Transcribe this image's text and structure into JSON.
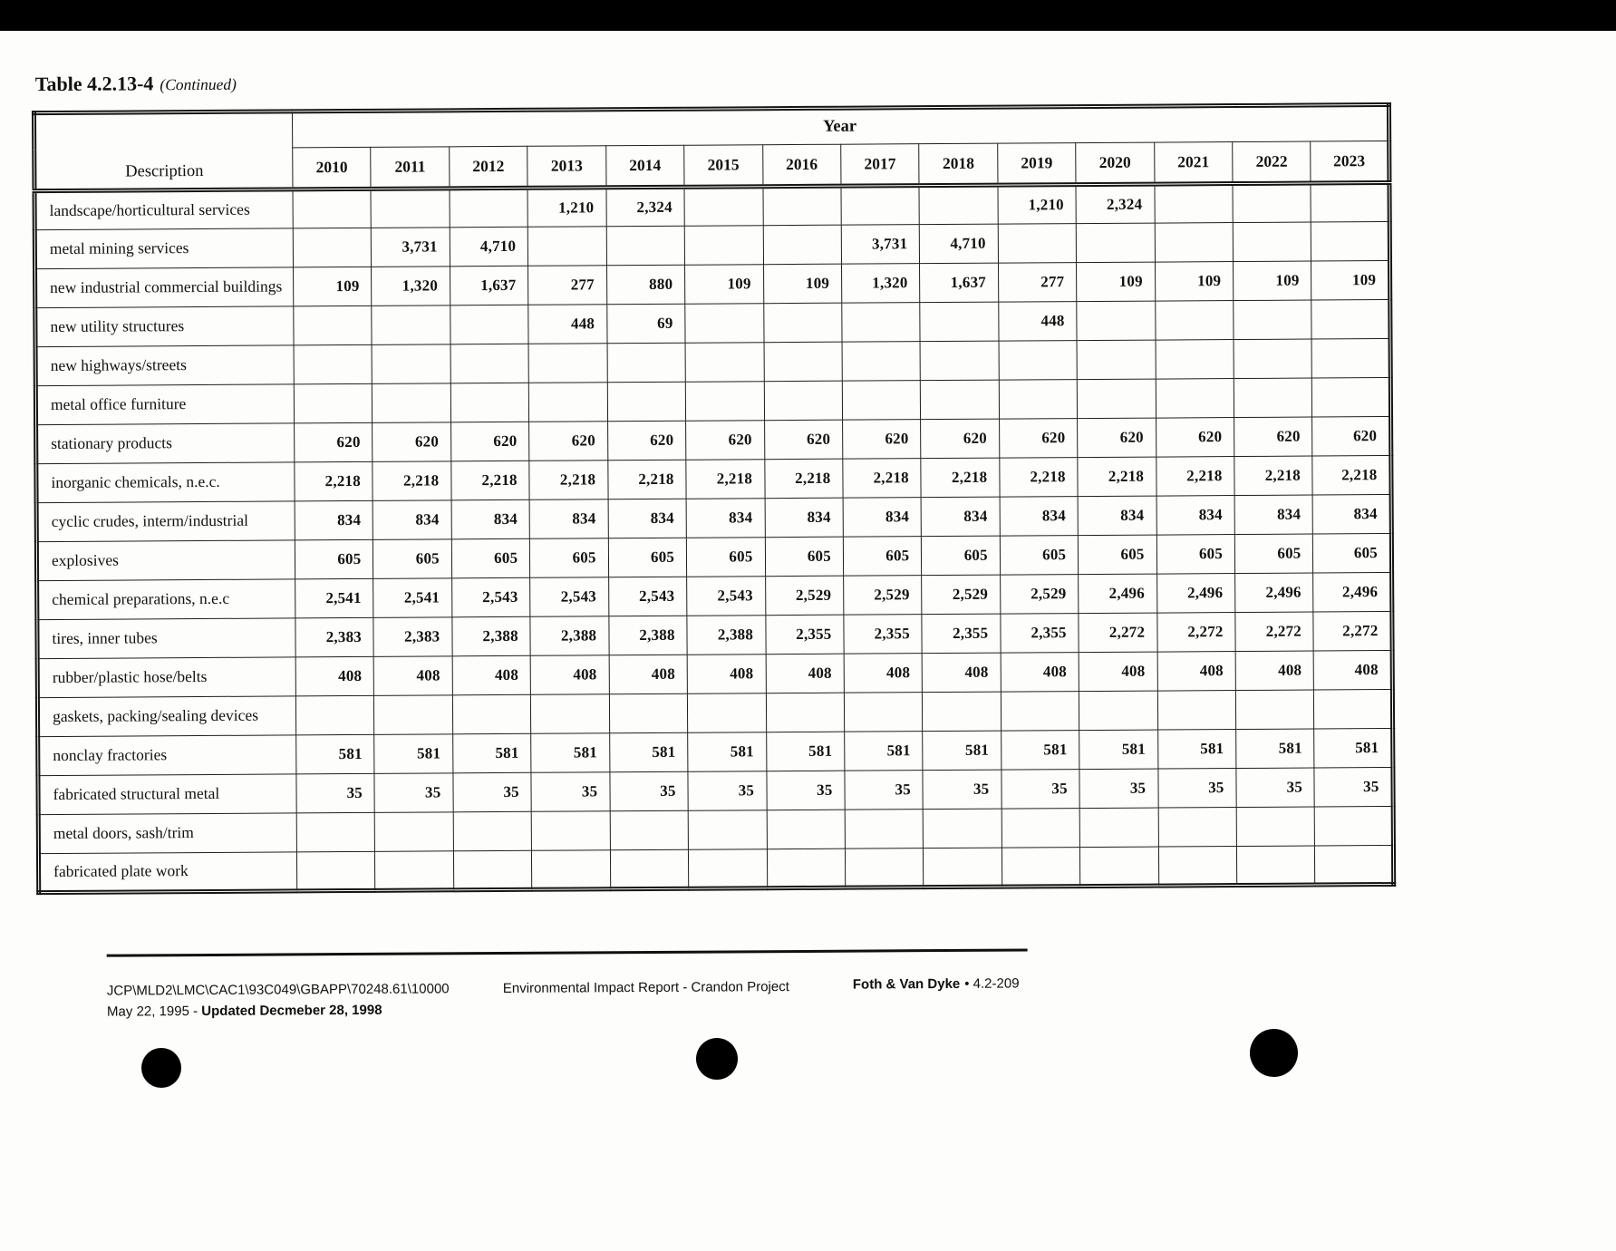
{
  "page": {
    "title": "Table 4.2.13-4",
    "title_suffix": "(Continued)"
  },
  "table": {
    "year_header": "Year",
    "description_header": "Description",
    "years": [
      "2010",
      "2011",
      "2012",
      "2013",
      "2014",
      "2015",
      "2016",
      "2017",
      "2018",
      "2019",
      "2020",
      "2021",
      "2022",
      "2023"
    ],
    "rows": [
      {
        "label": "landscape/horticultural services",
        "values": [
          "",
          "",
          "",
          "1,210",
          "2,324",
          "",
          "",
          "",
          "",
          "1,210",
          "2,324",
          "",
          "",
          ""
        ]
      },
      {
        "label": "metal mining services",
        "values": [
          "",
          "3,731",
          "4,710",
          "",
          "",
          "",
          "",
          "3,731",
          "4,710",
          "",
          "",
          "",
          "",
          ""
        ]
      },
      {
        "label": "new industrial commercial buildings",
        "values": [
          "109",
          "1,320",
          "1,637",
          "277",
          "880",
          "109",
          "109",
          "1,320",
          "1,637",
          "277",
          "109",
          "109",
          "109",
          "109"
        ]
      },
      {
        "label": "new utility structures",
        "values": [
          "",
          "",
          "",
          "448",
          "69",
          "",
          "",
          "",
          "",
          "448",
          "",
          "",
          "",
          ""
        ]
      },
      {
        "label": "new highways/streets",
        "values": [
          "",
          "",
          "",
          "",
          "",
          "",
          "",
          "",
          "",
          "",
          "",
          "",
          "",
          ""
        ]
      },
      {
        "label": "metal office furniture",
        "values": [
          "",
          "",
          "",
          "",
          "",
          "",
          "",
          "",
          "",
          "",
          "",
          "",
          "",
          ""
        ]
      },
      {
        "label": "stationary products",
        "values": [
          "620",
          "620",
          "620",
          "620",
          "620",
          "620",
          "620",
          "620",
          "620",
          "620",
          "620",
          "620",
          "620",
          "620"
        ]
      },
      {
        "label": "inorganic chemicals, n.e.c.",
        "values": [
          "2,218",
          "2,218",
          "2,218",
          "2,218",
          "2,218",
          "2,218",
          "2,218",
          "2,218",
          "2,218",
          "2,218",
          "2,218",
          "2,218",
          "2,218",
          "2,218"
        ]
      },
      {
        "label": "cyclic crudes, interm/industrial",
        "values": [
          "834",
          "834",
          "834",
          "834",
          "834",
          "834",
          "834",
          "834",
          "834",
          "834",
          "834",
          "834",
          "834",
          "834"
        ]
      },
      {
        "label": "explosives",
        "values": [
          "605",
          "605",
          "605",
          "605",
          "605",
          "605",
          "605",
          "605",
          "605",
          "605",
          "605",
          "605",
          "605",
          "605"
        ]
      },
      {
        "label": "chemical preparations, n.e.c",
        "values": [
          "2,541",
          "2,541",
          "2,543",
          "2,543",
          "2,543",
          "2,543",
          "2,529",
          "2,529",
          "2,529",
          "2,529",
          "2,496",
          "2,496",
          "2,496",
          "2,496"
        ]
      },
      {
        "label": "tires, inner tubes",
        "values": [
          "2,383",
          "2,383",
          "2,388",
          "2,388",
          "2,388",
          "2,388",
          "2,355",
          "2,355",
          "2,355",
          "2,355",
          "2,272",
          "2,272",
          "2,272",
          "2,272"
        ]
      },
      {
        "label": "rubber/plastic hose/belts",
        "values": [
          "408",
          "408",
          "408",
          "408",
          "408",
          "408",
          "408",
          "408",
          "408",
          "408",
          "408",
          "408",
          "408",
          "408"
        ]
      },
      {
        "label": "gaskets, packing/sealing devices",
        "values": [
          "",
          "",
          "",
          "",
          "",
          "",
          "",
          "",
          "",
          "",
          "",
          "",
          "",
          ""
        ]
      },
      {
        "label": "nonclay fractories",
        "values": [
          "581",
          "581",
          "581",
          "581",
          "581",
          "581",
          "581",
          "581",
          "581",
          "581",
          "581",
          "581",
          "581",
          "581"
        ]
      },
      {
        "label": "fabricated structural metal",
        "values": [
          "35",
          "35",
          "35",
          "35",
          "35",
          "35",
          "35",
          "35",
          "35",
          "35",
          "35",
          "35",
          "35",
          "35"
        ]
      },
      {
        "label": "metal doors, sash/trim",
        "values": [
          "",
          "",
          "",
          "",
          "",
          "",
          "",
          "",
          "",
          "",
          "",
          "",
          "",
          ""
        ]
      },
      {
        "label": "fabricated plate work",
        "values": [
          "",
          "",
          "",
          "",
          "",
          "",
          "",
          "",
          "",
          "",
          "",
          "",
          "",
          ""
        ]
      }
    ]
  },
  "footer": {
    "path": "JCP\\MLD2\\LMC\\CAC1\\93C049\\GBAPP\\70248.61\\10000",
    "date_prefix": "May 22, 1995 - ",
    "date_updated": "Updated Decmeber 28, 1998",
    "center": "Environmental Impact Report - Crandon Project",
    "company": "Foth & Van Dyke",
    "page_ref": "• 4.2-209"
  }
}
